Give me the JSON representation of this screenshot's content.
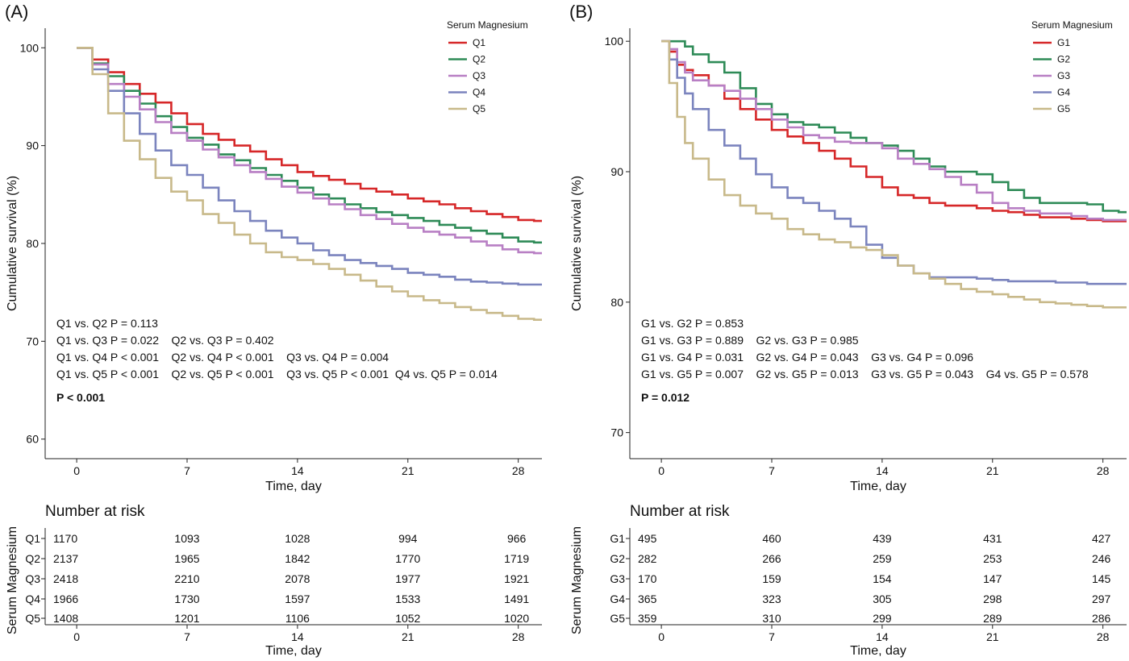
{
  "chart_data": [
    {
      "panel_label": "(A)",
      "type": "line",
      "step": true,
      "xlabel": "Time, day",
      "ylabel": "Cumulative survival (%)",
      "xlim": [
        -2,
        29.5
      ],
      "ylim": [
        58,
        102
      ],
      "xticks": [
        0,
        7,
        14,
        21,
        28
      ],
      "yticks": [
        60,
        70,
        80,
        90,
        100
      ],
      "grid": false,
      "legend_title": "Serum Magnesium",
      "legend_position": "top-right",
      "series": [
        {
          "name": "Q1",
          "color": "#d62728",
          "x": [
            0,
            1,
            2,
            3,
            4,
            5,
            6,
            7,
            8,
            9,
            10,
            11,
            12,
            13,
            14,
            15,
            16,
            17,
            18,
            19,
            20,
            21,
            22,
            23,
            24,
            25,
            26,
            27,
            28,
            29
          ],
          "y": [
            100,
            98.8,
            97.5,
            96.3,
            95.3,
            94.4,
            93.3,
            92.2,
            91.2,
            90.6,
            90.0,
            89.4,
            88.6,
            88.0,
            87.3,
            86.9,
            86.5,
            86.1,
            85.6,
            85.3,
            85.0,
            84.6,
            84.3,
            84.0,
            83.6,
            83.3,
            83.0,
            82.7,
            82.4,
            82.3
          ]
        },
        {
          "name": "Q2",
          "color": "#2e8b57",
          "x": [
            0,
            1,
            2,
            3,
            4,
            5,
            6,
            7,
            8,
            9,
            10,
            11,
            12,
            13,
            14,
            15,
            16,
            17,
            18,
            19,
            20,
            21,
            22,
            23,
            24,
            25,
            26,
            27,
            28,
            29
          ],
          "y": [
            100,
            98.4,
            97.1,
            95.6,
            94.3,
            93.0,
            91.9,
            90.8,
            90.1,
            89.1,
            88.5,
            87.7,
            87.0,
            86.4,
            85.7,
            85.0,
            84.6,
            84.0,
            83.6,
            83.2,
            82.9,
            82.6,
            82.3,
            81.9,
            81.6,
            81.3,
            81.0,
            80.6,
            80.2,
            80.1
          ]
        },
        {
          "name": "Q3",
          "color": "#b87fc4",
          "x": [
            0,
            1,
            2,
            3,
            4,
            5,
            6,
            7,
            8,
            9,
            10,
            11,
            12,
            13,
            14,
            15,
            16,
            17,
            18,
            19,
            20,
            21,
            22,
            23,
            24,
            25,
            26,
            27,
            28,
            29
          ],
          "y": [
            100,
            98.3,
            96.3,
            95.0,
            93.7,
            92.4,
            91.3,
            90.5,
            89.6,
            88.8,
            88.0,
            87.3,
            86.6,
            85.8,
            85.2,
            84.6,
            84.0,
            83.5,
            82.9,
            82.5,
            82.0,
            81.6,
            81.2,
            80.9,
            80.6,
            80.2,
            79.8,
            79.4,
            79.1,
            79.0
          ]
        },
        {
          "name": "Q4",
          "color": "#7b84be",
          "x": [
            0,
            1,
            2,
            3,
            4,
            5,
            6,
            7,
            8,
            9,
            10,
            11,
            12,
            13,
            14,
            15,
            16,
            17,
            18,
            19,
            20,
            21,
            22,
            23,
            24,
            25,
            26,
            27,
            28,
            29
          ],
          "y": [
            100,
            97.8,
            95.6,
            93.3,
            91.2,
            89.5,
            88.0,
            87.0,
            85.7,
            84.4,
            83.3,
            82.3,
            81.3,
            80.6,
            80.0,
            79.3,
            78.8,
            78.3,
            78.0,
            77.7,
            77.4,
            77.0,
            76.8,
            76.6,
            76.3,
            76.1,
            76.0,
            75.9,
            75.8,
            75.8
          ]
        },
        {
          "name": "Q5",
          "color": "#c8b98a",
          "x": [
            0,
            1,
            2,
            3,
            4,
            5,
            6,
            7,
            8,
            9,
            10,
            11,
            12,
            13,
            14,
            15,
            16,
            17,
            18,
            19,
            20,
            21,
            22,
            23,
            24,
            25,
            26,
            27,
            28,
            29
          ],
          "y": [
            100,
            97.3,
            93.3,
            90.5,
            88.6,
            86.7,
            85.3,
            84.4,
            83.0,
            82.1,
            80.9,
            80.0,
            79.1,
            78.6,
            78.3,
            77.9,
            77.4,
            76.8,
            76.2,
            75.6,
            75.1,
            74.6,
            74.2,
            73.9,
            73.5,
            73.2,
            72.9,
            72.6,
            72.3,
            72.2
          ]
        }
      ],
      "annotations": [
        "Q1 vs. Q2 P = 0.113",
        "Q1 vs. Q3 P = 0.022    Q2 vs. Q3 P = 0.402",
        "Q1 vs. Q4 P < 0.001    Q2 vs. Q4 P < 0.001    Q3 vs. Q4 P = 0.004",
        "Q1 vs. Q5 P < 0.001    Q2 vs. Q5 P < 0.001    Q3 vs. Q5 P < 0.001  Q4 vs. Q5 P = 0.014"
      ],
      "p_overall": "P < 0.001",
      "risk_table": {
        "title": "Number at risk",
        "ylabel": "Serum Magnesium",
        "xlabel": "Time, day",
        "times": [
          0,
          7,
          14,
          21,
          28
        ],
        "rows": [
          {
            "group": "Q1",
            "counts": [
              1170,
              1093,
              1028,
              994,
              966
            ]
          },
          {
            "group": "Q2",
            "counts": [
              2137,
              1965,
              1842,
              1770,
              1719
            ]
          },
          {
            "group": "Q3",
            "counts": [
              2418,
              2210,
              2078,
              1977,
              1921
            ]
          },
          {
            "group": "Q4",
            "counts": [
              1966,
              1730,
              1597,
              1533,
              1491
            ]
          },
          {
            "group": "Q5",
            "counts": [
              1408,
              1201,
              1106,
              1052,
              1020
            ]
          }
        ]
      }
    },
    {
      "panel_label": "(B)",
      "type": "line",
      "step": true,
      "xlabel": "Time, day",
      "ylabel": "Cumulative survival (%)",
      "xlim": [
        -2,
        29.5
      ],
      "ylim": [
        68,
        101
      ],
      "xticks": [
        0,
        7,
        14,
        21,
        28
      ],
      "yticks": [
        70,
        80,
        90,
        100
      ],
      "grid": false,
      "legend_title": "Serum Magnesium",
      "legend_position": "top-right",
      "series": [
        {
          "name": "G1",
          "color": "#d62728",
          "x": [
            0,
            0.5,
            1,
            1.5,
            2,
            3,
            4,
            5,
            6,
            7,
            8,
            9,
            10,
            11,
            12,
            13,
            14,
            15,
            16,
            17,
            18,
            19,
            20,
            21,
            22,
            23,
            24,
            25,
            26,
            27,
            28,
            29
          ],
          "y": [
            100,
            99.2,
            98.2,
            97.8,
            97.4,
            96.6,
            95.6,
            94.8,
            94.0,
            93.2,
            92.7,
            92.2,
            91.6,
            91.0,
            90.4,
            89.6,
            88.8,
            88.2,
            88.0,
            87.6,
            87.4,
            87.4,
            87.2,
            87.0,
            86.9,
            86.7,
            86.5,
            86.5,
            86.4,
            86.3,
            86.2,
            86.2
          ]
        },
        {
          "name": "G2",
          "color": "#2e8b57",
          "x": [
            0,
            0.5,
            1,
            1.5,
            2,
            3,
            4,
            5,
            6,
            7,
            8,
            9,
            10,
            11,
            12,
            13,
            14,
            15,
            16,
            17,
            18,
            19,
            20,
            21,
            22,
            23,
            24,
            25,
            26,
            27,
            28,
            29
          ],
          "y": [
            100,
            100,
            100,
            99.6,
            99.0,
            98.4,
            97.6,
            96.4,
            95.2,
            94.4,
            93.8,
            93.6,
            93.4,
            93.0,
            92.6,
            92.2,
            92.0,
            91.6,
            91.0,
            90.4,
            90.0,
            90.0,
            89.8,
            89.2,
            88.6,
            88.0,
            87.6,
            87.6,
            87.6,
            87.5,
            87.0,
            86.9
          ]
        },
        {
          "name": "G3",
          "color": "#b87fc4",
          "x": [
            0,
            0.5,
            1,
            1.5,
            2,
            3,
            4,
            5,
            6,
            7,
            8,
            9,
            10,
            11,
            12,
            13,
            14,
            15,
            16,
            17,
            18,
            19,
            20,
            21,
            22,
            23,
            24,
            25,
            26,
            27,
            28,
            29
          ],
          "y": [
            100,
            99.4,
            98.4,
            97.6,
            97.0,
            96.6,
            96.2,
            95.6,
            94.8,
            94.0,
            93.4,
            92.8,
            92.6,
            92.3,
            92.2,
            92.2,
            91.8,
            91.0,
            90.6,
            90.2,
            89.6,
            89.0,
            88.4,
            87.6,
            87.2,
            87.0,
            86.8,
            86.8,
            86.6,
            86.4,
            86.3,
            86.3
          ]
        },
        {
          "name": "G4",
          "color": "#7b84be",
          "x": [
            0,
            0.5,
            1,
            1.5,
            2,
            3,
            4,
            5,
            6,
            7,
            8,
            9,
            10,
            11,
            12,
            13,
            14,
            15,
            16,
            17,
            18,
            19,
            20,
            21,
            22,
            23,
            24,
            25,
            26,
            27,
            28,
            29
          ],
          "y": [
            100,
            98.6,
            97.2,
            96.0,
            94.8,
            93.2,
            92.0,
            91.0,
            89.8,
            88.8,
            88.0,
            87.6,
            87.0,
            86.4,
            85.8,
            84.4,
            83.4,
            82.8,
            82.2,
            81.9,
            81.9,
            81.9,
            81.8,
            81.7,
            81.6,
            81.6,
            81.6,
            81.5,
            81.5,
            81.4,
            81.4,
            81.4
          ]
        },
        {
          "name": "G5",
          "color": "#c8b98a",
          "x": [
            0,
            0.5,
            1,
            1.5,
            2,
            3,
            4,
            5,
            6,
            7,
            8,
            9,
            10,
            11,
            12,
            13,
            14,
            15,
            16,
            17,
            18,
            19,
            20,
            21,
            22,
            23,
            24,
            25,
            26,
            27,
            28,
            29
          ],
          "y": [
            100,
            96.8,
            94.2,
            92.2,
            91.0,
            89.4,
            88.2,
            87.4,
            86.8,
            86.4,
            85.6,
            85.2,
            84.8,
            84.6,
            84.2,
            84.0,
            83.6,
            82.8,
            82.2,
            81.8,
            81.4,
            81.0,
            80.8,
            80.6,
            80.4,
            80.2,
            80.0,
            79.9,
            79.8,
            79.7,
            79.6,
            79.6
          ]
        }
      ],
      "annotations": [
        "G1 vs. G2 P = 0.853",
        "G1 vs. G3 P = 0.889    G2 vs. G3 P = 0.985",
        "G1 vs. G4 P = 0.031    G2 vs. G4 P = 0.043    G3 vs. G4 P = 0.096",
        "G1 vs. G5 P = 0.007    G2 vs. G5 P = 0.013    G3 vs. G5 P = 0.043    G4 vs. G5 P = 0.578"
      ],
      "p_overall": "P = 0.012",
      "risk_table": {
        "title": "Number at risk",
        "ylabel": "Serum Magnesium",
        "xlabel": "Time, day",
        "times": [
          0,
          7,
          14,
          21,
          28
        ],
        "rows": [
          {
            "group": "G1",
            "counts": [
              495,
              460,
              439,
              431,
              427
            ]
          },
          {
            "group": "G2",
            "counts": [
              282,
              266,
              259,
              253,
              246
            ]
          },
          {
            "group": "G3",
            "counts": [
              170,
              159,
              154,
              147,
              145
            ]
          },
          {
            "group": "G4",
            "counts": [
              365,
              323,
              305,
              298,
              297
            ]
          },
          {
            "group": "G5",
            "counts": [
              359,
              310,
              299,
              289,
              286
            ]
          }
        ]
      }
    }
  ]
}
